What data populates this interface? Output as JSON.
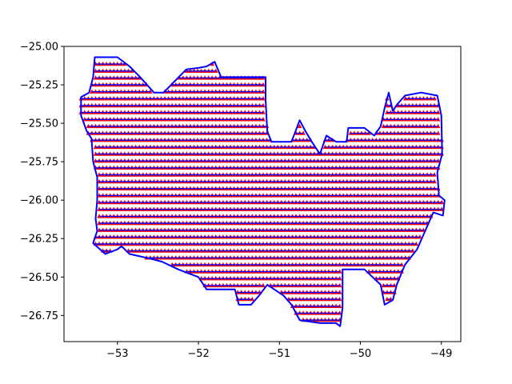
{
  "chart_data": {
    "type": "scatter",
    "title": "",
    "xlabel": "",
    "ylabel": "",
    "xlim": [
      -53.66,
      -48.76
    ],
    "ylim": [
      -26.92,
      -25.0
    ],
    "x_ticks": [
      -53,
      -52,
      -51,
      -50,
      -49
    ],
    "x_tick_labels": [
      "−53",
      "−52",
      "−51",
      "−50",
      "−49"
    ],
    "y_ticks": [
      -25.0,
      -25.25,
      -25.5,
      -25.75,
      -26.0,
      -26.25,
      -26.5,
      -26.75
    ],
    "y_tick_labels": [
      "−25.00",
      "−25.25",
      "−25.50",
      "−25.75",
      "−26.00",
      "−26.25",
      "−26.50",
      "−26.75"
    ],
    "grid": false,
    "grid_step": {
      "x": 0.045,
      "y": 0.045
    },
    "series": [
      {
        "kind": "points",
        "marker": "triangle",
        "color": "#ff0000"
      },
      {
        "kind": "boundary-outline",
        "color": "#0000ff",
        "polygon": [
          [
            -53.28,
            -25.07
          ],
          [
            -53.0,
            -25.07
          ],
          [
            -52.85,
            -25.13
          ],
          [
            -52.72,
            -25.2
          ],
          [
            -52.55,
            -25.3
          ],
          [
            -52.43,
            -25.3
          ],
          [
            -52.3,
            -25.23
          ],
          [
            -52.15,
            -25.15
          ],
          [
            -52.0,
            -25.14
          ],
          [
            -51.9,
            -25.13
          ],
          [
            -51.8,
            -25.1
          ],
          [
            -51.72,
            -25.2
          ],
          [
            -51.17,
            -25.2
          ],
          [
            -51.17,
            -25.35
          ],
          [
            -51.15,
            -25.55
          ],
          [
            -51.1,
            -25.62
          ],
          [
            -50.85,
            -25.62
          ],
          [
            -50.75,
            -25.48
          ],
          [
            -50.68,
            -25.55
          ],
          [
            -50.6,
            -25.62
          ],
          [
            -50.5,
            -25.7
          ],
          [
            -50.42,
            -25.58
          ],
          [
            -50.3,
            -25.62
          ],
          [
            -50.17,
            -25.62
          ],
          [
            -50.15,
            -25.53
          ],
          [
            -49.95,
            -25.53
          ],
          [
            -49.83,
            -25.58
          ],
          [
            -49.75,
            -25.52
          ],
          [
            -49.7,
            -25.4
          ],
          [
            -49.65,
            -25.3
          ],
          [
            -49.6,
            -25.42
          ],
          [
            -49.55,
            -25.38
          ],
          [
            -49.45,
            -25.32
          ],
          [
            -49.25,
            -25.3
          ],
          [
            -49.05,
            -25.32
          ],
          [
            -49.0,
            -25.45
          ],
          [
            -48.99,
            -25.7
          ],
          [
            -49.05,
            -25.82
          ],
          [
            -49.03,
            -25.97
          ],
          [
            -48.96,
            -26.0
          ],
          [
            -48.98,
            -26.1
          ],
          [
            -49.1,
            -26.08
          ],
          [
            -49.2,
            -26.2
          ],
          [
            -49.3,
            -26.32
          ],
          [
            -49.45,
            -26.42
          ],
          [
            -49.55,
            -26.55
          ],
          [
            -49.6,
            -26.65
          ],
          [
            -49.7,
            -26.68
          ],
          [
            -49.75,
            -26.55
          ],
          [
            -49.85,
            -26.5
          ],
          [
            -49.95,
            -26.45
          ],
          [
            -50.1,
            -26.45
          ],
          [
            -50.22,
            -26.45
          ],
          [
            -50.22,
            -26.6
          ],
          [
            -50.22,
            -26.7
          ],
          [
            -50.25,
            -26.82
          ],
          [
            -50.3,
            -26.8
          ],
          [
            -50.5,
            -26.8
          ],
          [
            -50.75,
            -26.78
          ],
          [
            -50.85,
            -26.68
          ],
          [
            -50.95,
            -26.62
          ],
          [
            -51.15,
            -26.55
          ],
          [
            -51.25,
            -26.62
          ],
          [
            -51.35,
            -26.68
          ],
          [
            -51.5,
            -26.68
          ],
          [
            -51.55,
            -26.58
          ],
          [
            -51.9,
            -26.58
          ],
          [
            -52.0,
            -26.5
          ],
          [
            -52.25,
            -26.45
          ],
          [
            -52.45,
            -26.4
          ],
          [
            -52.6,
            -26.38
          ],
          [
            -52.85,
            -26.35
          ],
          [
            -52.95,
            -26.3
          ],
          [
            -53.0,
            -26.32
          ],
          [
            -53.15,
            -26.35
          ],
          [
            -53.3,
            -26.28
          ],
          [
            -53.25,
            -26.2
          ],
          [
            -53.27,
            -26.12
          ],
          [
            -53.25,
            -26.0
          ],
          [
            -53.25,
            -25.85
          ],
          [
            -53.3,
            -25.75
          ],
          [
            -53.32,
            -25.6
          ],
          [
            -53.38,
            -25.55
          ],
          [
            -53.45,
            -25.45
          ],
          [
            -53.45,
            -25.33
          ],
          [
            -53.35,
            -25.3
          ],
          [
            -53.3,
            -25.2
          ]
        ]
      }
    ]
  }
}
